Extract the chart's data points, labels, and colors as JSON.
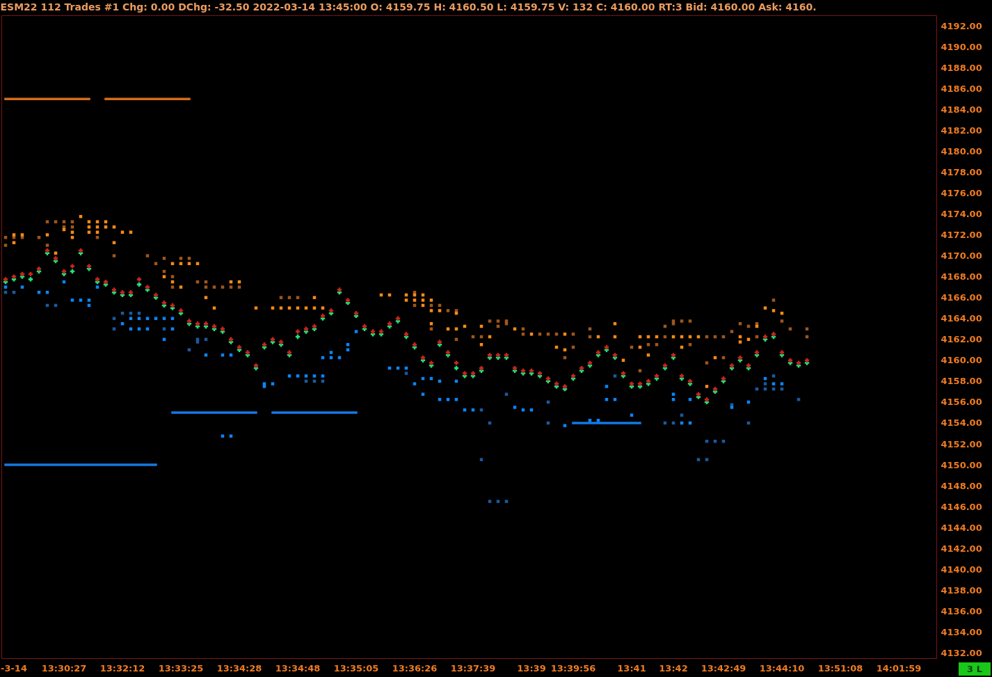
{
  "chart_data": {
    "type": "scatter",
    "title": "ESM22 112 Trades #1 Chg: 0.00 DChg: -32.50 2022-03-14 13:45:00 O: 4159.75 H: 4160.50 L: 4159.75 V: 132 C: 4160.00 RT:3 Bid: 4160.00 Ask: 4160.",
    "categories": [
      null,
      "-3-14",
      null,
      null,
      null,
      null,
      null,
      "13:30:27",
      null,
      null,
      null,
      null,
      null,
      null,
      "13:32:12",
      null,
      null,
      null,
      null,
      null,
      null,
      "13:33:25",
      null,
      null,
      null,
      null,
      null,
      null,
      "13:34:28",
      null,
      null,
      null,
      null,
      null,
      null,
      "13:34:48",
      null,
      null,
      null,
      null,
      null,
      null,
      "13:35:05",
      null,
      null,
      null,
      null,
      null,
      null,
      "13:36:26",
      null,
      null,
      null,
      null,
      null,
      null,
      "13:37:39",
      null,
      null,
      null,
      null,
      null,
      null,
      "13:39",
      null,
      null,
      null,
      null,
      "13:39:56",
      null,
      null,
      null,
      null,
      null,
      null,
      "13:41",
      null,
      null,
      null,
      null,
      "13:42",
      null,
      null,
      null,
      null,
      null,
      "13:42:49",
      null,
      null,
      null,
      null,
      null,
      null,
      "13:44:10",
      null,
      null,
      null,
      null,
      null,
      null,
      "13:51:08",
      null,
      null,
      null,
      null,
      null,
      null,
      "14:01:59",
      null,
      null,
      null,
      null
    ],
    "ylim": [
      4131.5,
      4193
    ],
    "yticks": [
      {
        "value": 4132,
        "label": "4132.00"
      },
      {
        "value": 4134,
        "label": "4134.00"
      },
      {
        "value": 4136,
        "label": "4136.00"
      },
      {
        "value": 4138,
        "label": "4138.00"
      },
      {
        "value": 4140,
        "label": "4140.00"
      },
      {
        "value": 4142,
        "label": "4142.00"
      },
      {
        "value": 4144,
        "label": "4144.00"
      },
      {
        "value": 4146,
        "label": "4146.00"
      },
      {
        "value": 4148,
        "label": "4148.00"
      },
      {
        "value": 4150,
        "label": "4150.00"
      },
      {
        "value": 4152,
        "label": "4152.00"
      },
      {
        "value": 4154,
        "label": "4154.00"
      },
      {
        "value": 4156,
        "label": "4156.00"
      },
      {
        "value": 4158,
        "label": "4158.00"
      },
      {
        "value": 4160,
        "label": "4160.00"
      },
      {
        "value": 4162,
        "label": "4162.00"
      },
      {
        "value": 4164,
        "label": "4164.00"
      },
      {
        "value": 4166,
        "label": "4166.00"
      },
      {
        "value": 4168,
        "label": "4168.00"
      },
      {
        "value": 4170,
        "label": "4170.00"
      },
      {
        "value": 4172,
        "label": "4172.00"
      },
      {
        "value": 4174,
        "label": "4174.00"
      },
      {
        "value": 4176,
        "label": "4176.00"
      },
      {
        "value": 4178,
        "label": "4178.00"
      },
      {
        "value": 4180,
        "label": "4180.00"
      },
      {
        "value": 4182,
        "label": "4182.00"
      },
      {
        "value": 4184,
        "label": "4184.00"
      },
      {
        "value": 4186,
        "label": "4186.00"
      },
      {
        "value": 4188,
        "label": "4188.00"
      },
      {
        "value": 4190,
        "label": "4190.00"
      },
      {
        "value": 4192,
        "label": "4192.00"
      }
    ],
    "annotations": [
      "3 L"
    ],
    "series": [
      {
        "type": "line",
        "color": "#d46c1c",
        "values": [
          4185,
          4185,
          4185,
          4185,
          4185,
          4185,
          4185,
          4185,
          4185,
          4185,
          4185,
          null,
          4185,
          4185,
          4185,
          4185,
          4185,
          4185,
          4185,
          4185,
          4185,
          4185,
          4185,
          null,
          null,
          null,
          null,
          null,
          null,
          null,
          null,
          null,
          null,
          null,
          null,
          null,
          null,
          null,
          null,
          null,
          null,
          null,
          null,
          null,
          null,
          null,
          null,
          null,
          null,
          null,
          null,
          null,
          null,
          null,
          null,
          null,
          null,
          null,
          null,
          null,
          null,
          null,
          null,
          null,
          null,
          null,
          null,
          null,
          null,
          null,
          null,
          null,
          null,
          null,
          null,
          null,
          null,
          null,
          null,
          null,
          null,
          null,
          null,
          null,
          null,
          null,
          null,
          null,
          null,
          null,
          null,
          null,
          null,
          null,
          null,
          null,
          null,
          null,
          null,
          null,
          null,
          null,
          null,
          null,
          null,
          null,
          null,
          null,
          null,
          null,
          null,
          null
        ]
      },
      {
        "type": "line",
        "color": "#1479e4",
        "values": [
          4150,
          4150,
          4150,
          4150,
          4150,
          4150,
          4150,
          4150,
          4150,
          4150,
          4150,
          4150,
          4150,
          4150,
          4150,
          4150,
          4150,
          4150,
          4150,
          null,
          4155,
          4155,
          4155,
          4155,
          4155,
          4155,
          4155,
          4155,
          4155,
          4155,
          4155,
          null,
          4155,
          4155,
          4155,
          4155,
          4155,
          4155,
          4155,
          4155,
          4155,
          4155,
          4155,
          null,
          null,
          null,
          null,
          null,
          null,
          null,
          null,
          null,
          null,
          null,
          null,
          null,
          null,
          null,
          null,
          null,
          null,
          null,
          null,
          null,
          null,
          null,
          null,
          null,
          4154,
          4154,
          4154,
          4154,
          4154,
          4154,
          4154,
          4154,
          4154,
          null,
          null,
          null,
          null,
          null,
          null,
          null,
          null,
          null,
          null,
          null,
          null,
          null,
          null,
          null,
          null,
          null,
          null,
          null,
          null,
          null,
          null,
          null,
          null,
          null,
          null,
          null,
          null,
          null,
          null,
          null,
          null,
          null,
          null,
          null
        ]
      },
      {
        "color": "#a0561b",
        "marker": "square",
        "values": [
          4171.75,
          4171.75,
          4171.75,
          null,
          4171.75,
          4173.25,
          4173.25,
          4173.25,
          4173.25,
          null,
          null,
          4171.75,
          null,
          4170,
          null,
          null,
          null,
          4170,
          4169.25,
          4169.75,
          4168,
          4169.75,
          4169.75,
          4167.5,
          4167.5,
          4167,
          4167,
          4167,
          4167,
          null,
          null,
          null,
          null,
          4166,
          4166,
          4166,
          null,
          null,
          null,
          null,
          null,
          null,
          null,
          null,
          null,
          null,
          null,
          null,
          null,
          4166.5,
          null,
          4165.25,
          4165.25,
          4164.75,
          4164.75,
          null,
          4162.25,
          4162.25,
          4163.75,
          4163.75,
          4163.75,
          null,
          4163,
          null,
          4162.5,
          4162.5,
          4162.5,
          4160.25,
          4162.5,
          null,
          4163,
          null,
          null,
          null,
          null,
          4161.25,
          4159,
          4161.5,
          4161.5,
          4163.25,
          4163.75,
          4163.75,
          4163.75,
          null,
          4162.25,
          4162.25,
          4162.25,
          4162.75,
          4163.5,
          4163.25,
          4163.5,
          null,
          4165.75,
          4163.75,
          4163,
          null,
          4163,
          null,
          null,
          null,
          null,
          null,
          null,
          null,
          null,
          null,
          null,
          null,
          null,
          null,
          null,
          null
        ]
      },
      {
        "color": "#a0561b",
        "marker": "square",
        "values": [
          4171,
          null,
          null,
          null,
          null,
          4171,
          null,
          4172.75,
          4172.75,
          null,
          null,
          null,
          null,
          null,
          null,
          null,
          null,
          null,
          null,
          4168.5,
          4167,
          null,
          null,
          null,
          4167,
          null,
          null,
          null,
          null,
          null,
          null,
          null,
          null,
          null,
          null,
          null,
          null,
          null,
          null,
          null,
          null,
          null,
          null,
          null,
          null,
          null,
          null,
          null,
          null,
          4165.25,
          null,
          4163,
          null,
          null,
          4162,
          null,
          null,
          null,
          null,
          4163.25,
          4163.5,
          null,
          4162.5,
          null,
          null,
          null,
          null,
          null,
          4161.25,
          null,
          4162.25,
          null,
          null,
          null,
          null,
          null,
          null,
          null,
          null,
          4162.25,
          4163.5,
          null,
          4161.5,
          null,
          4159.75,
          null,
          4160.25,
          null,
          null,
          null,
          4162.25,
          null,
          null,
          null,
          null,
          null,
          4162.25,
          null,
          null,
          null,
          null,
          null,
          null,
          null,
          null,
          null,
          null,
          null,
          null,
          null,
          null,
          null
        ]
      },
      {
        "color": "#ff8a14",
        "marker": "square",
        "values": [
          null,
          4172,
          4172,
          null,
          null,
          4172,
          4170.25,
          4172.5,
          4172.25,
          4173.75,
          4173.25,
          4173.25,
          4173.25,
          4172.75,
          4172.25,
          4172.25,
          null,
          null,
          null,
          4168,
          4169.25,
          4169.25,
          4169.25,
          4169.25,
          4166,
          4165,
          null,
          4167.5,
          4167.5,
          null,
          4165,
          null,
          4165,
          4165,
          4165,
          4165,
          4165,
          4166,
          4165,
          null,
          null,
          null,
          null,
          null,
          null,
          4166.25,
          4166.25,
          null,
          4166.25,
          4166.25,
          4166.25,
          4165.75,
          4164.75,
          4163,
          4164.5,
          4163.25,
          null,
          4163.25,
          4162.25,
          null,
          null,
          4163,
          null,
          4162.5,
          null,
          null,
          4161.25,
          4162.5,
          null,
          null,
          null,
          4162.25,
          null,
          4163.5,
          4160,
          null,
          4162.25,
          4162.25,
          4162.25,
          null,
          4162.25,
          4162.25,
          4162.25,
          4162.25,
          4157.5,
          4160.25,
          null,
          null,
          4162.25,
          4162,
          4163.25,
          4165,
          4164.75,
          4164.5,
          null,
          null,
          null,
          null,
          null,
          null,
          null,
          null,
          null,
          null,
          null,
          null,
          null,
          null,
          null,
          null,
          null,
          null
        ]
      },
      {
        "color": "#ff8a14",
        "marker": "square",
        "values": [
          null,
          4171.25,
          null,
          null,
          null,
          null,
          null,
          null,
          4171.75,
          null,
          4172.75,
          4172.75,
          4172.75,
          4171.25,
          null,
          null,
          null,
          null,
          null,
          null,
          4167.5,
          4167,
          null,
          null,
          null,
          null,
          null,
          null,
          null,
          null,
          null,
          null,
          null,
          null,
          null,
          null,
          null,
          4165,
          null,
          null,
          null,
          null,
          null,
          null,
          null,
          null,
          null,
          null,
          4165.75,
          4165.75,
          4165.75,
          4164.75,
          null,
          null,
          4163,
          null,
          null,
          4161.5,
          null,
          null,
          null,
          null,
          null,
          null,
          null,
          null,
          null,
          4161,
          null,
          null,
          null,
          null,
          null,
          4162.25,
          null,
          null,
          4161.25,
          4160.5,
          null,
          null,
          null,
          4161.25,
          null,
          null,
          null,
          null,
          null,
          null,
          4161.75,
          null,
          null,
          null,
          null,
          null,
          null,
          null,
          null,
          null,
          null,
          null,
          null,
          null,
          null,
          null,
          null,
          null,
          null,
          null,
          null,
          null,
          null,
          null
        ]
      },
      {
        "color": "#ff8a14",
        "marker": "square",
        "values": [
          null,
          null,
          null,
          null,
          null,
          null,
          null,
          null,
          null,
          null,
          4172.25,
          4172.25,
          null,
          null,
          null,
          null,
          null,
          null,
          null,
          null,
          null,
          null,
          null,
          null,
          null,
          null,
          null,
          null,
          null,
          null,
          null,
          null,
          null,
          null,
          null,
          null,
          null,
          null,
          null,
          null,
          null,
          null,
          null,
          null,
          null,
          null,
          null,
          null,
          null,
          null,
          4165.25,
          4163.5,
          null,
          null,
          null,
          null,
          null,
          null,
          null,
          null,
          null,
          null,
          null,
          null,
          null,
          null,
          null,
          null,
          null,
          null,
          null,
          null,
          null,
          null,
          null,
          null,
          null,
          null,
          null,
          null,
          null,
          null,
          null,
          null,
          null,
          null,
          null,
          null,
          null,
          null,
          null,
          null,
          null,
          null,
          null,
          null,
          null,
          null,
          null,
          null,
          null,
          null,
          null,
          null,
          null,
          null,
          null,
          null,
          null,
          null,
          null,
          null
        ]
      },
      {
        "color": "#1a5a9e",
        "marker": "square",
        "values": [
          4166.5,
          4166.5,
          null,
          null,
          null,
          4165.25,
          4165.25,
          null,
          null,
          null,
          null,
          null,
          null,
          4164,
          4164.5,
          4164.5,
          4164.5,
          null,
          null,
          4163,
          null,
          null,
          4161,
          4162,
          4162,
          null,
          null,
          null,
          null,
          null,
          null,
          null,
          null,
          null,
          null,
          null,
          4158,
          4158,
          4158,
          null,
          null,
          null,
          null,
          null,
          null,
          null,
          null,
          null,
          4158.75,
          null,
          null,
          null,
          null,
          null,
          null,
          null,
          null,
          4155.25,
          4146.5,
          4146.5,
          4156.75,
          null,
          null,
          null,
          null,
          4156,
          null,
          null,
          null,
          null,
          null,
          null,
          null,
          4158.5,
          null,
          null,
          null,
          null,
          null,
          4154,
          4154,
          4154.75,
          null,
          4150.5,
          4152.25,
          4152.25,
          4152.25,
          4155.75,
          null,
          4154,
          4157.25,
          4157.75,
          4158.5,
          4157.25,
          null,
          4156.25,
          null,
          null,
          null,
          null,
          null,
          null,
          null,
          null,
          null,
          null,
          null,
          null,
          null,
          null,
          null,
          null
        ]
      },
      {
        "color": "#1a5a9e",
        "marker": "square",
        "values": [
          null,
          null,
          null,
          null,
          null,
          null,
          null,
          null,
          null,
          null,
          null,
          null,
          null,
          4163,
          null,
          null,
          null,
          null,
          null,
          null,
          null,
          null,
          null,
          4161.75,
          null,
          null,
          null,
          null,
          null,
          null,
          null,
          null,
          null,
          null,
          null,
          null,
          null,
          null,
          null,
          null,
          null,
          null,
          null,
          null,
          null,
          null,
          null,
          null,
          null,
          null,
          null,
          null,
          null,
          null,
          null,
          null,
          null,
          4150.5,
          4154,
          null,
          4146.5,
          null,
          null,
          null,
          null,
          4154,
          null,
          null,
          null,
          null,
          null,
          null,
          null,
          null,
          null,
          null,
          null,
          null,
          null,
          null,
          null,
          null,
          null,
          null,
          4150.5,
          null,
          null,
          null,
          null,
          null,
          null,
          4157.25,
          4157.25,
          null,
          null,
          null,
          null,
          null,
          null,
          null,
          null,
          null,
          null,
          null,
          null,
          null,
          null,
          null,
          null,
          null,
          null,
          null
        ]
      },
      {
        "color": "#0a86ff",
        "marker": "square",
        "values": [
          4167,
          null,
          4167,
          null,
          4166.5,
          4166.5,
          null,
          4167.5,
          4165.75,
          4165.75,
          4165.75,
          4167,
          null,
          null,
          4163.5,
          4164,
          4164,
          4164,
          4164,
          4164,
          4164,
          null,
          null,
          null,
          4160.5,
          null,
          4160.5,
          4160.5,
          null,
          null,
          null,
          4157.75,
          4157.75,
          null,
          4158.5,
          4158.5,
          4158.5,
          4158.5,
          4160.25,
          4160.75,
          4160.25,
          4161.5,
          4162.75,
          null,
          null,
          null,
          4159.25,
          4159.25,
          4159.25,
          4157.75,
          4158.25,
          4158.25,
          4158,
          4156.25,
          4158,
          4155.25,
          4155.25,
          null,
          null,
          null,
          null,
          4155.5,
          4155.25,
          4155.25,
          null,
          null,
          null,
          4153.75,
          null,
          null,
          4154.25,
          4154.25,
          4157.5,
          4156.25,
          null,
          4154.75,
          null,
          null,
          null,
          null,
          4156.75,
          4154,
          4156.25,
          null,
          null,
          null,
          null,
          4155.5,
          null,
          4156,
          null,
          4158.25,
          4157.75,
          4157.75,
          null,
          null,
          null,
          null,
          null,
          null,
          null,
          null,
          null,
          null,
          null,
          null,
          null,
          null,
          null,
          null,
          null,
          null
        ]
      },
      {
        "color": "#0a86ff",
        "marker": "square",
        "values": [
          null,
          null,
          null,
          null,
          null,
          null,
          null,
          null,
          null,
          null,
          4165.25,
          null,
          null,
          null,
          null,
          4163,
          4163,
          4163,
          null,
          4162,
          4163,
          null,
          null,
          null,
          null,
          null,
          4152.75,
          4152.75,
          null,
          null,
          null,
          4157.5,
          null,
          null,
          null,
          null,
          null,
          null,
          4158.5,
          4160.25,
          null,
          4161,
          null,
          null,
          null,
          null,
          null,
          null,
          null,
          null,
          4156.75,
          null,
          4156.25,
          null,
          4156.25,
          null,
          null,
          null,
          null,
          null,
          null,
          null,
          null,
          null,
          null,
          null,
          null,
          null,
          null,
          null,
          null,
          null,
          4156.25,
          null,
          null,
          null,
          null,
          null,
          null,
          null,
          4156.25,
          null,
          4154,
          null,
          null,
          null,
          null,
          null,
          null,
          null,
          null,
          null,
          null,
          null,
          null,
          null,
          null,
          null,
          null,
          null,
          null,
          null,
          null,
          null,
          null,
          null,
          null,
          null,
          null,
          null,
          null,
          null
        ]
      },
      {
        "color": "#22e27c",
        "marker": "cross",
        "values": [
          4167.5,
          4167.75,
          4168,
          4167.75,
          4168.5,
          4170.25,
          4169.5,
          4168.25,
          4168.5,
          4170.25,
          4168.75,
          4167.5,
          4167.25,
          4166.5,
          4166.25,
          4166.25,
          4167.25,
          4166.75,
          4166,
          4165.25,
          4165,
          4164.5,
          4163.5,
          4163.25,
          4163.25,
          4163,
          4162.75,
          4161.75,
          4161,
          4160.5,
          4159.25,
          4161.25,
          4161.75,
          4161.5,
          4160.5,
          4162.25,
          4162.75,
          4163,
          4164,
          4164.5,
          4166.5,
          4165.5,
          4164.25,
          4163,
          4162.5,
          4162.5,
          4163.25,
          4163.75,
          4162.25,
          4161.25,
          4160,
          4159.5,
          4161.5,
          4160.5,
          4159.25,
          4158.5,
          4158.5,
          4159,
          4160.25,
          4160.25,
          4160.25,
          4159,
          4158.75,
          4158.75,
          4158.5,
          4158,
          4157.5,
          4157.25,
          4158.25,
          4159,
          4159.5,
          4160.5,
          4161,
          4160.25,
          4158.5,
          4157.5,
          4157.5,
          4157.75,
          4158.25,
          4159.25,
          4160.25,
          4158.25,
          4157.75,
          4156.5,
          4156,
          4157,
          4158,
          4159.25,
          4160,
          4159.25,
          4160.5,
          4162,
          4162.25,
          4160.5,
          4159.75,
          4159.5,
          4159.75,
          null,
          null,
          null,
          null,
          null,
          null,
          null,
          null,
          null,
          null,
          null,
          null,
          null,
          null,
          null
        ]
      },
      {
        "color": "#c9261c",
        "marker": "cross",
        "values": [
          4167.75,
          4168,
          4168.25,
          4168.25,
          4168.75,
          4170.5,
          4169.75,
          4168.5,
          4169,
          4170.5,
          4169,
          4167.75,
          4167.5,
          4166.75,
          4166.5,
          4166.5,
          4167.75,
          4167,
          4166.25,
          4165.5,
          4165.25,
          4164.75,
          4163.75,
          4163.5,
          4163.5,
          4163.25,
          4163,
          4162,
          4161.25,
          4160.75,
          4159.5,
          4161.5,
          4162,
          4161.75,
          4160.75,
          4162.75,
          4163,
          4163.25,
          4164.25,
          4164.75,
          4166.75,
          4165.75,
          4164.5,
          4163.25,
          4162.75,
          4162.75,
          4163.5,
          4164,
          4162.5,
          4161.5,
          4160.25,
          4159.75,
          4161.75,
          4160.75,
          4159.75,
          4158.75,
          4158.75,
          4159.25,
          4160.5,
          4160.5,
          4160.5,
          4159.25,
          4159,
          4159,
          4158.75,
          4158.25,
          4157.75,
          4157.5,
          4158.5,
          4159.25,
          4159.75,
          4160.75,
          4161.25,
          4160.5,
          4158.75,
          4157.75,
          4157.75,
          4158,
          4158.5,
          4159.5,
          4160.5,
          4158.5,
          4158,
          4156.75,
          4156.25,
          4157.25,
          4158.25,
          4159.5,
          4160.25,
          4159.5,
          4160.75,
          4162.25,
          4162.5,
          4160.75,
          4160,
          4159.75,
          4160,
          null,
          null,
          null,
          null,
          null,
          null,
          null,
          null,
          null,
          null,
          null,
          null,
          null,
          null,
          null
        ]
      }
    ]
  }
}
